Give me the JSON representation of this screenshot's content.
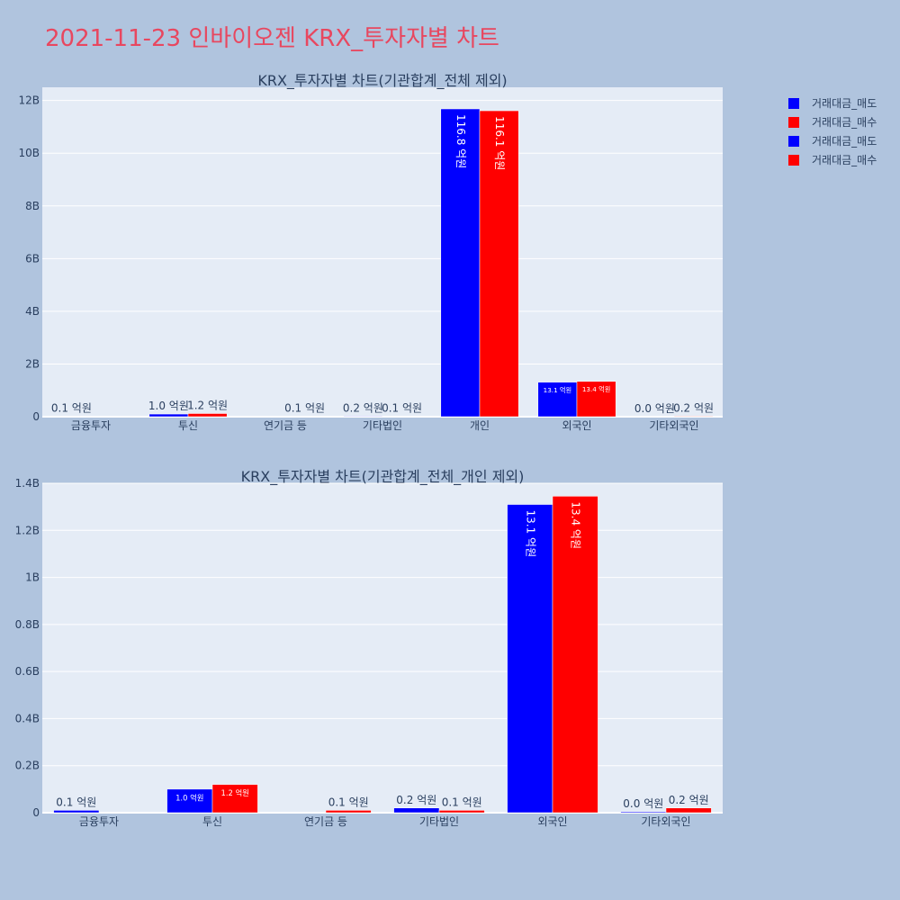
{
  "title": "2021-11-23 인바이오젠 KRX_투자자별 차트",
  "legend": [
    {
      "name": "거래대금_매도",
      "color": "#0000ff"
    },
    {
      "name": "거래대금_매수",
      "color": "#ff0000"
    },
    {
      "name": "거래대금_매도",
      "color": "#0000ff"
    },
    {
      "name": "거래대금_매수",
      "color": "#ff0000"
    }
  ],
  "chart_data": [
    {
      "type": "bar",
      "title": "KRX_투자자별 차트(기관합계_전체 제외)",
      "categories": [
        "금융투자",
        "투신",
        "연기금 등",
        "기타법인",
        "개인",
        "외국인",
        "기타외국인"
      ],
      "series": [
        {
          "name": "거래대금_매도",
          "color": "#0000ff",
          "values": [
            10000000,
            100000000,
            0,
            20000000,
            11680000000,
            1310000000,
            0
          ],
          "labels": [
            "0.1 억원",
            "1.0 억원",
            "",
            "0.2 억원",
            "116.8 억원",
            "13.1 억원",
            "0.0 억원"
          ]
        },
        {
          "name": "거래대금_매수",
          "color": "#ff0000",
          "values": [
            0,
            120000000,
            10000000,
            10000000,
            11610000000,
            1340000000,
            20000000
          ],
          "labels": [
            "",
            "1.2 억원",
            "0.1 억원",
            "0.1 억원",
            "116.1 억원",
            "13.4 억원",
            "0.2 억원"
          ]
        }
      ],
      "ylim": [
        0,
        12500000000
      ],
      "yticks": [
        0,
        2000000000,
        4000000000,
        6000000000,
        8000000000,
        10000000000,
        12000000000
      ],
      "yticklabels": [
        "0",
        "2B",
        "4B",
        "6B",
        "8B",
        "10B",
        "12B"
      ],
      "grid": true,
      "legend": "top-right"
    },
    {
      "type": "bar",
      "title": "KRX_투자자별 차트(기관합계_전체_개인 제외)",
      "categories": [
        "금융투자",
        "투신",
        "연기금 등",
        "기타법인",
        "외국인",
        "기타외국인"
      ],
      "series": [
        {
          "name": "거래대금_매도",
          "color": "#0000ff",
          "values": [
            10000000,
            100000000,
            0,
            20000000,
            1310000000,
            4000000
          ],
          "labels": [
            "0.1 억원",
            "1.0 억원",
            "",
            "0.2 억원",
            "13.1 억원",
            "0.0 억원"
          ]
        },
        {
          "name": "거래대금_매수",
          "color": "#ff0000",
          "values": [
            0,
            120000000,
            10000000,
            10000000,
            1345000000,
            20000000
          ],
          "labels": [
            "",
            "1.2 억원",
            "0.1 억원",
            "0.1 억원",
            "13.4 억원",
            "0.2 억원"
          ]
        }
      ],
      "ylim": [
        0,
        1400000000
      ],
      "yticks": [
        0,
        200000000,
        400000000,
        600000000,
        800000000,
        1000000000,
        1200000000,
        1400000000
      ],
      "yticklabels": [
        "0",
        "0.2B",
        "0.4B",
        "0.6B",
        "0.8B",
        "1B",
        "1.2B",
        "1.4B"
      ],
      "grid": true,
      "legend": "top-right"
    }
  ]
}
